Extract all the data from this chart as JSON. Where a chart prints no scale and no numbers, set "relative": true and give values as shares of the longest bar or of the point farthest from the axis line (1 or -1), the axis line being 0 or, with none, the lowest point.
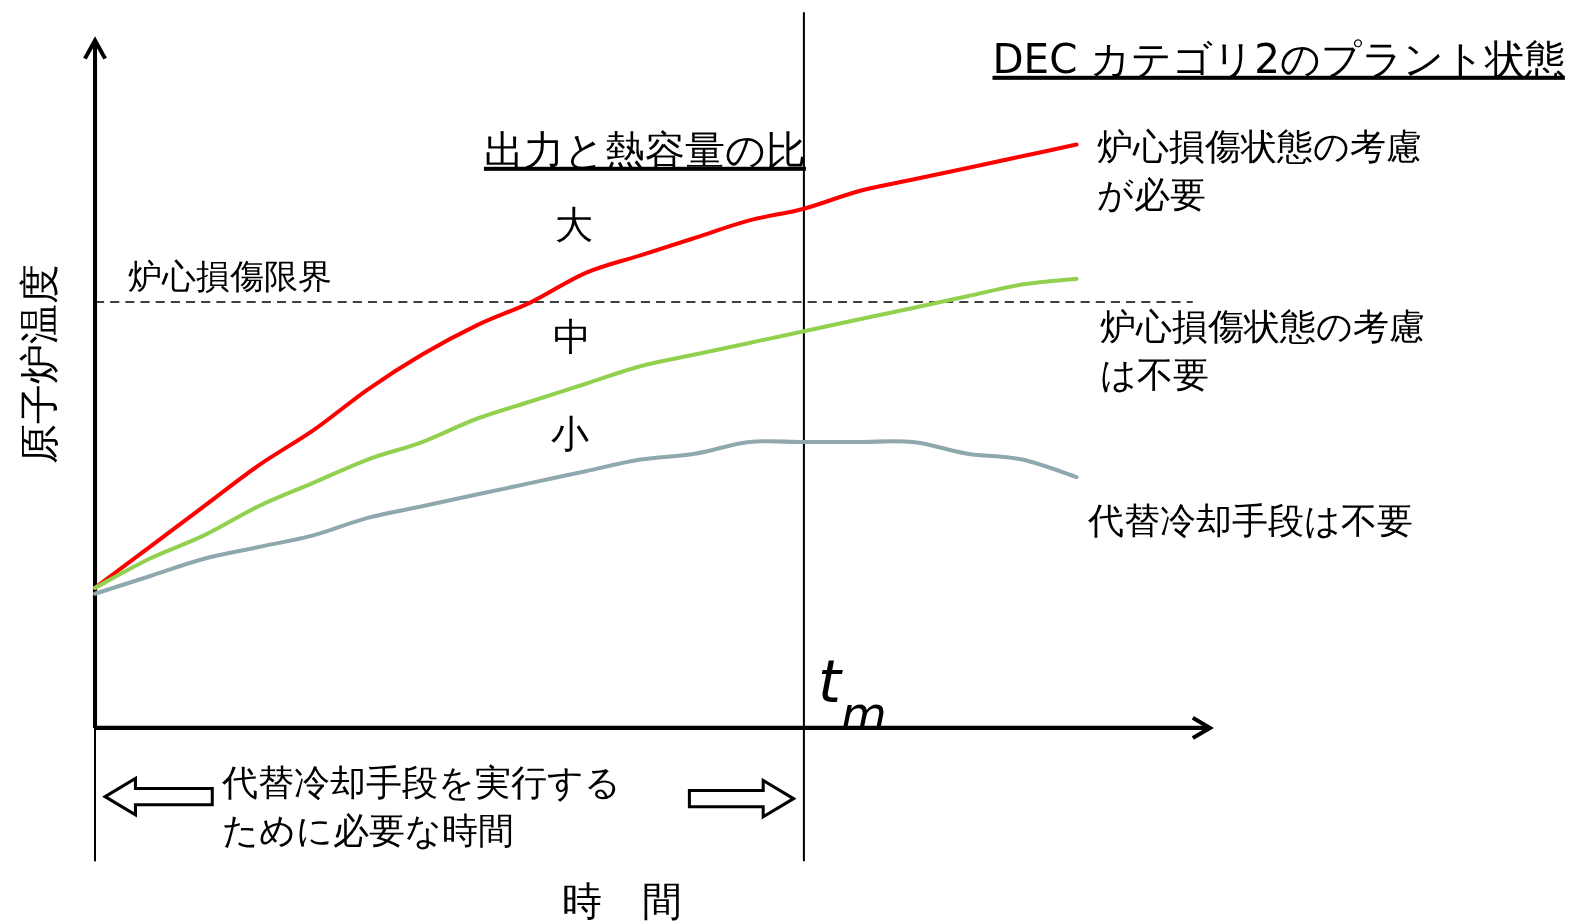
{
  "chart_data": {
    "type": "line",
    "relative": true,
    "title": "DEC カテゴリ2のプラント状態",
    "legend_title": "出力と熱容量の比",
    "xlabel": "時　間",
    "ylabel": "原子炉温度",
    "categories": [
      null,
      null,
      null,
      null,
      null,
      null,
      null,
      null,
      null,
      null,
      null,
      null,
      null,
      null,
      null,
      null,
      null,
      null,
      null
    ],
    "series": [
      {
        "name": "大",
        "color": "#ff0000",
        "values": [
          0.24,
          0.31,
          0.38,
          0.45,
          0.51,
          0.58,
          0.64,
          0.69,
          0.73,
          0.78,
          0.81,
          0.84,
          0.87,
          0.89,
          0.92,
          0.94,
          0.96,
          0.98,
          1
        ]
      },
      {
        "name": "中",
        "color": "#92d050",
        "values": [
          0.24,
          0.29,
          0.33,
          0.38,
          0.42,
          0.46,
          0.49,
          0.53,
          0.56,
          0.59,
          0.62,
          0.64,
          0.66,
          0.68,
          0.7,
          0.72,
          0.74,
          0.76,
          0.77
        ]
      },
      {
        "name": "小",
        "color": "#8fa8ad",
        "values": [
          0.23,
          0.26,
          0.29,
          0.31,
          0.33,
          0.36,
          0.38,
          0.4,
          0.42,
          0.44,
          0.46,
          0.47,
          0.49,
          0.49,
          0.49,
          0.49,
          0.47,
          0.46,
          0.43
        ]
      }
    ],
    "ref_lines": [
      {
        "axis": "y",
        "value": 0.73,
        "label": "炉心損傷限界",
        "color": "#000000",
        "line_style": "dashed"
      }
    ],
    "annotations": [
      "炉心損傷状態の考慮が必要",
      "炉心損傷状態の考慮は不要",
      "代替冷却手段は不要",
      "代替冷却手段を実行するために必要な時間",
      "t$_{m}$"
    ],
    "legend": false,
    "grid": false,
    "marker": "none",
    "line_style": "solid"
  }
}
